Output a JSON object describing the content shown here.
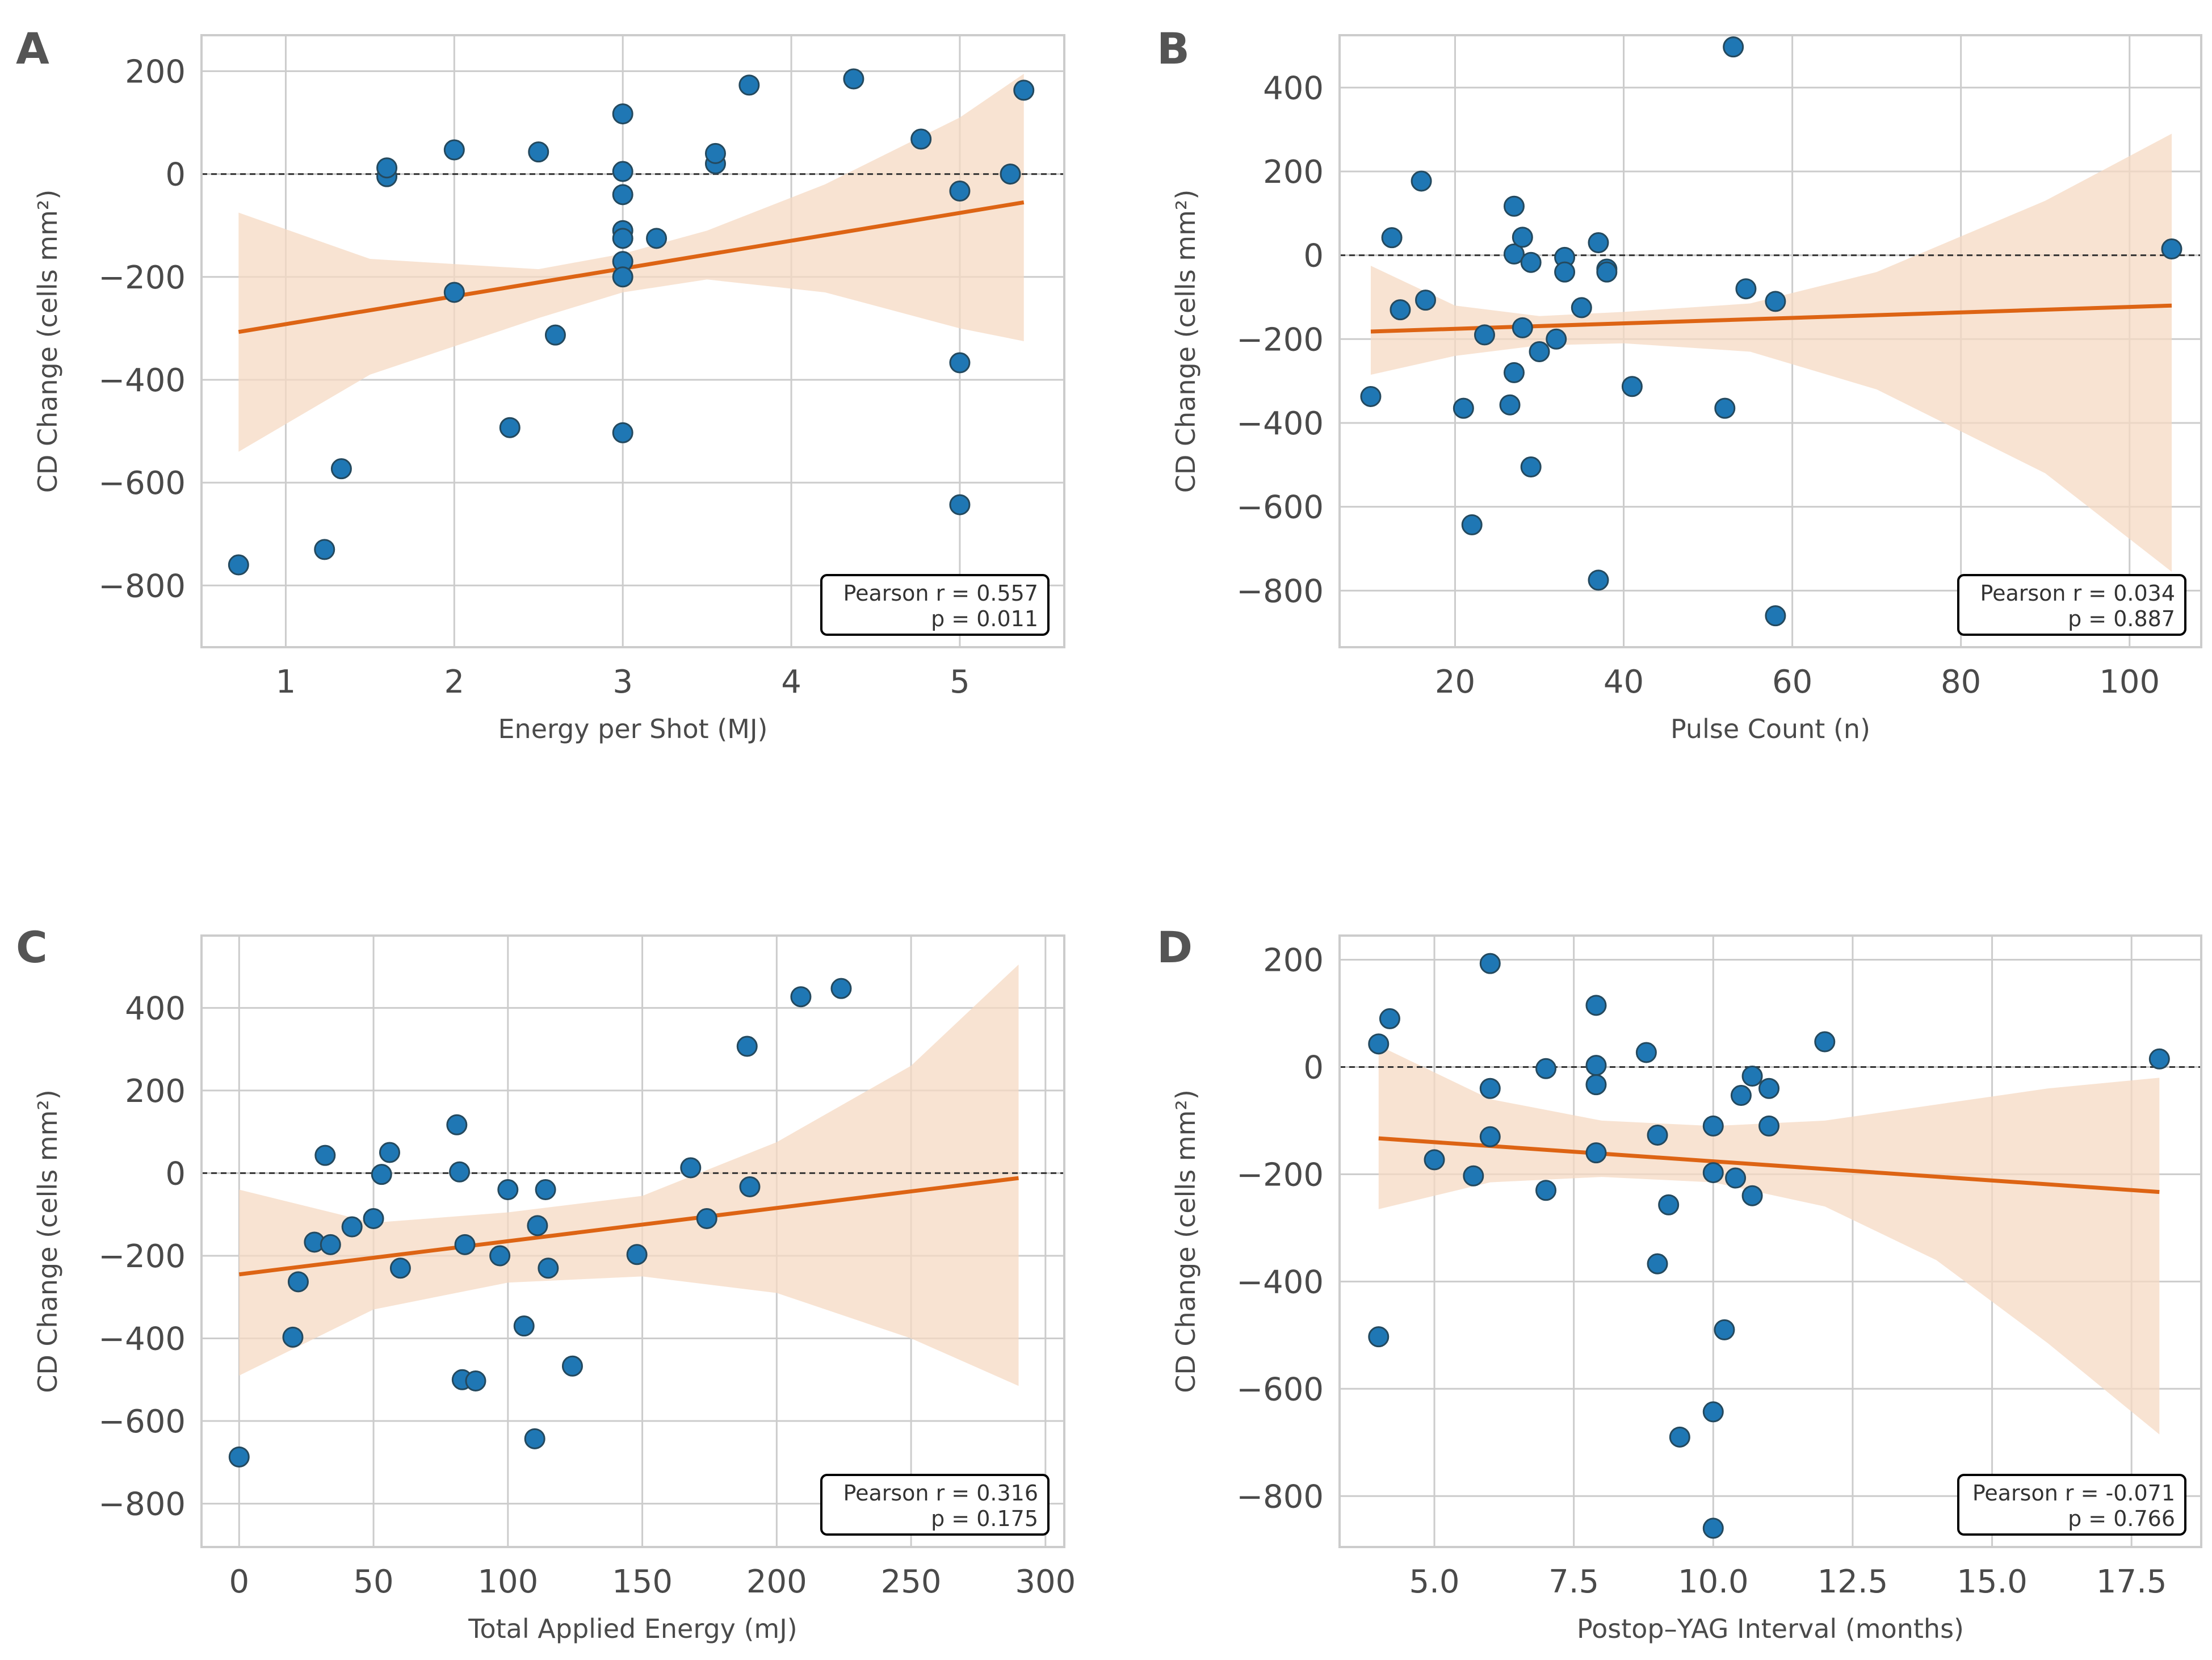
{
  "colors": {
    "point": "#1f77b4",
    "line": "#dd6414",
    "band": "#f6d9c3",
    "grid": "#cccccc"
  },
  "chart_data": [
    {
      "panel": "A",
      "type": "scatter",
      "xlabel": "Energy per Shot (MJ)",
      "ylabel": "CD Change (cells mm²)",
      "xlim": [
        0.5,
        5.62
      ],
      "ylim": [
        -920,
        270
      ],
      "xticks": [
        1,
        2,
        3,
        4,
        5
      ],
      "xtick_labels": [
        "1",
        "2",
        "3",
        "4",
        "5"
      ],
      "yticks": [
        -800,
        -600,
        -400,
        -200,
        0,
        200
      ],
      "ytick_labels": [
        "−800",
        "−600",
        "−400",
        "−200",
        "0",
        "200"
      ],
      "stats": {
        "r_text": "Pearson r = 0.557",
        "p_text": "p = 0.011"
      },
      "fit": {
        "x": [
          0.72,
          5.38
        ],
        "y": [
          -307,
          -55
        ]
      },
      "ci": {
        "x": [
          0.72,
          1.5,
          2.5,
          3.0,
          3.5,
          4.2,
          5.0,
          5.38
        ],
        "lower": [
          -540,
          -390,
          -280,
          -230,
          -205,
          -230,
          -300,
          -325
        ],
        "upper": [
          -75,
          -165,
          -185,
          -155,
          -110,
          -20,
          110,
          195
        ]
      },
      "points": [
        {
          "x": 0.72,
          "y": -760
        },
        {
          "x": 1.23,
          "y": -730
        },
        {
          "x": 1.33,
          "y": -573
        },
        {
          "x": 1.6,
          "y": -5
        },
        {
          "x": 1.6,
          "y": 12
        },
        {
          "x": 2.0,
          "y": 47
        },
        {
          "x": 2.0,
          "y": -230
        },
        {
          "x": 2.33,
          "y": -493
        },
        {
          "x": 2.5,
          "y": 43
        },
        {
          "x": 2.6,
          "y": -313
        },
        {
          "x": 3.0,
          "y": 117
        },
        {
          "x": 3.0,
          "y": 5
        },
        {
          "x": 3.0,
          "y": -40
        },
        {
          "x": 3.0,
          "y": -110
        },
        {
          "x": 3.0,
          "y": -125
        },
        {
          "x": 3.0,
          "y": -170
        },
        {
          "x": 3.0,
          "y": -200
        },
        {
          "x": 3.0,
          "y": -503
        },
        {
          "x": 3.2,
          "y": -125
        },
        {
          "x": 3.55,
          "y": 20
        },
        {
          "x": 3.55,
          "y": 40
        },
        {
          "x": 3.75,
          "y": 173
        },
        {
          "x": 4.37,
          "y": 185
        },
        {
          "x": 4.77,
          "y": 68
        },
        {
          "x": 5.0,
          "y": -33
        },
        {
          "x": 5.0,
          "y": -367
        },
        {
          "x": 5.0,
          "y": -643
        },
        {
          "x": 5.3,
          "y": 0
        },
        {
          "x": 5.38,
          "y": 163
        }
      ]
    },
    {
      "panel": "B",
      "type": "scatter",
      "xlabel": "Pulse Count (n)",
      "ylabel": "CD Change (cells mm²)",
      "xlim": [
        6.3,
        108.5
      ],
      "ylim": [
        -935,
        525
      ],
      "xticks": [
        20,
        40,
        60,
        80,
        100
      ],
      "xtick_labels": [
        "20",
        "40",
        "60",
        "80",
        "100"
      ],
      "yticks": [
        -800,
        -600,
        -400,
        -200,
        0,
        200,
        400
      ],
      "ytick_labels": [
        "−800",
        "−600",
        "−400",
        "−200",
        "0",
        "200",
        "400"
      ],
      "stats": {
        "r_text": "Pearson r = 0.034",
        "p_text": "p = 0.887"
      },
      "fit": {
        "x": [
          10,
          105
        ],
        "y": [
          -182,
          -120
        ]
      },
      "ci": {
        "x": [
          10,
          20,
          30,
          40,
          55,
          70,
          90,
          105
        ],
        "lower": [
          -285,
          -240,
          -215,
          -210,
          -230,
          -320,
          -520,
          -755
        ],
        "upper": [
          -25,
          -120,
          -145,
          -135,
          -115,
          -40,
          130,
          290
        ]
      },
      "points": [
        {
          "x": 10,
          "y": -337
        },
        {
          "x": 12.5,
          "y": 42
        },
        {
          "x": 13.5,
          "y": -130
        },
        {
          "x": 16,
          "y": 177
        },
        {
          "x": 16.5,
          "y": -107
        },
        {
          "x": 21,
          "y": -365
        },
        {
          "x": 22,
          "y": -643
        },
        {
          "x": 23.5,
          "y": -190
        },
        {
          "x": 26.5,
          "y": -357
        },
        {
          "x": 27,
          "y": 117
        },
        {
          "x": 27,
          "y": 3
        },
        {
          "x": 27,
          "y": -280
        },
        {
          "x": 28,
          "y": 43
        },
        {
          "x": 28,
          "y": -173
        },
        {
          "x": 29,
          "y": -17
        },
        {
          "x": 29,
          "y": -505
        },
        {
          "x": 30,
          "y": -230
        },
        {
          "x": 32,
          "y": -200
        },
        {
          "x": 33,
          "y": -5
        },
        {
          "x": 33,
          "y": -40
        },
        {
          "x": 35,
          "y": -125
        },
        {
          "x": 37,
          "y": 30
        },
        {
          "x": 37,
          "y": -775
        },
        {
          "x": 38,
          "y": -33
        },
        {
          "x": 38,
          "y": -40
        },
        {
          "x": 41,
          "y": -313
        },
        {
          "x": 52,
          "y": -365
        },
        {
          "x": 53,
          "y": 497
        },
        {
          "x": 54.5,
          "y": -80
        },
        {
          "x": 58,
          "y": -110
        },
        {
          "x": 58,
          "y": -860
        },
        {
          "x": 105,
          "y": 15
        }
      ]
    },
    {
      "panel": "C",
      "type": "scatter",
      "xlabel": "Total Applied Energy (mJ)",
      "ylabel": "CD Change (cells mm²)",
      "xlim": [
        -14,
        307
      ],
      "ylim": [
        -905,
        575
      ],
      "xticks": [
        0,
        50,
        100,
        150,
        200,
        250,
        300
      ],
      "xtick_labels": [
        "0",
        "50",
        "100",
        "150",
        "200",
        "250",
        "300"
      ],
      "yticks": [
        -800,
        -600,
        -400,
        -200,
        0,
        200,
        400
      ],
      "ytick_labels": [
        "−800",
        "−600",
        "−400",
        "−200",
        "0",
        "200",
        "400"
      ],
      "stats": {
        "r_text": "Pearson r = 0.316",
        "p_text": "p = 0.175"
      },
      "fit": {
        "x": [
          0,
          290
        ],
        "y": [
          -245,
          -12
        ]
      },
      "ci": {
        "x": [
          0,
          50,
          100,
          150,
          200,
          250,
          290
        ],
        "lower": [
          -490,
          -330,
          -265,
          -250,
          -290,
          -400,
          -515
        ],
        "upper": [
          -40,
          -120,
          -95,
          -55,
          75,
          260,
          505
        ]
      },
      "points": [
        {
          "x": 0,
          "y": -687
        },
        {
          "x": 20,
          "y": -397
        },
        {
          "x": 22,
          "y": -263
        },
        {
          "x": 28,
          "y": -167
        },
        {
          "x": 32,
          "y": 43
        },
        {
          "x": 34,
          "y": -173
        },
        {
          "x": 42,
          "y": -130
        },
        {
          "x": 50,
          "y": -110
        },
        {
          "x": 53,
          "y": -3
        },
        {
          "x": 56,
          "y": 50
        },
        {
          "x": 60,
          "y": -230
        },
        {
          "x": 81,
          "y": 117
        },
        {
          "x": 82,
          "y": 3
        },
        {
          "x": 83,
          "y": -500
        },
        {
          "x": 84,
          "y": -173
        },
        {
          "x": 88,
          "y": -503
        },
        {
          "x": 97,
          "y": -200
        },
        {
          "x": 100,
          "y": -40
        },
        {
          "x": 106,
          "y": -370
        },
        {
          "x": 110,
          "y": -643
        },
        {
          "x": 111,
          "y": -127
        },
        {
          "x": 114,
          "y": -40
        },
        {
          "x": 115,
          "y": -230
        },
        {
          "x": 124,
          "y": -467
        },
        {
          "x": 148,
          "y": -197
        },
        {
          "x": 168,
          "y": 13
        },
        {
          "x": 174,
          "y": -110
        },
        {
          "x": 189,
          "y": 307
        },
        {
          "x": 190,
          "y": -33
        },
        {
          "x": 209,
          "y": 427
        },
        {
          "x": 224,
          "y": 447
        }
      ]
    },
    {
      "panel": "D",
      "type": "scatter",
      "xlabel": "Postop–YAG Interval (months)",
      "ylabel": "CD Change (cells mm²)",
      "xlim": [
        3.3,
        18.75
      ],
      "ylim": [
        -895,
        245
      ],
      "xticks": [
        5,
        7.5,
        10,
        12.5,
        15,
        17.5
      ],
      "xtick_labels": [
        "5.0",
        "7.5",
        "10.0",
        "12.5",
        "15.0",
        "17.5"
      ],
      "yticks": [
        -800,
        -600,
        -400,
        -200,
        0,
        200
      ],
      "ytick_labels": [
        "−800",
        "−600",
        "−400",
        "−200",
        "0",
        "200"
      ],
      "stats": {
        "r_text": "Pearson r = -0.071",
        "p_text": "p = 0.766"
      },
      "fit": {
        "x": [
          4,
          18
        ],
        "y": [
          -133,
          -233
        ]
      },
      "ci": {
        "x": [
          4,
          6,
          8,
          10,
          12,
          14,
          16,
          18
        ],
        "lower": [
          -265,
          -215,
          -205,
          -215,
          -260,
          -360,
          -515,
          -685
        ],
        "upper": [
          40,
          -60,
          -100,
          -110,
          -100,
          -70,
          -40,
          -20
        ]
      },
      "points": [
        {
          "x": 4,
          "y": 43
        },
        {
          "x": 4,
          "y": -503
        },
        {
          "x": 4.2,
          "y": 90
        },
        {
          "x": 5,
          "y": -173
        },
        {
          "x": 5.7,
          "y": -203
        },
        {
          "x": 6,
          "y": 193
        },
        {
          "x": 6,
          "y": -40
        },
        {
          "x": 6,
          "y": -130
        },
        {
          "x": 7,
          "y": -3
        },
        {
          "x": 7,
          "y": -230
        },
        {
          "x": 7.9,
          "y": 115
        },
        {
          "x": 7.9,
          "y": 3
        },
        {
          "x": 7.9,
          "y": -33
        },
        {
          "x": 7.9,
          "y": -160
        },
        {
          "x": 8.8,
          "y": 27
        },
        {
          "x": 9,
          "y": -127
        },
        {
          "x": 9,
          "y": -367
        },
        {
          "x": 9.2,
          "y": -257
        },
        {
          "x": 9.4,
          "y": -690
        },
        {
          "x": 10,
          "y": -110
        },
        {
          "x": 10,
          "y": -197
        },
        {
          "x": 10,
          "y": -643
        },
        {
          "x": 10,
          "y": -860
        },
        {
          "x": 10.2,
          "y": -490
        },
        {
          "x": 10.4,
          "y": -207
        },
        {
          "x": 10.5,
          "y": -53
        },
        {
          "x": 10.7,
          "y": -17
        },
        {
          "x": 10.7,
          "y": -240
        },
        {
          "x": 11,
          "y": -40
        },
        {
          "x": 11,
          "y": -110
        },
        {
          "x": 12,
          "y": 47
        },
        {
          "x": 18,
          "y": 15
        }
      ]
    }
  ]
}
